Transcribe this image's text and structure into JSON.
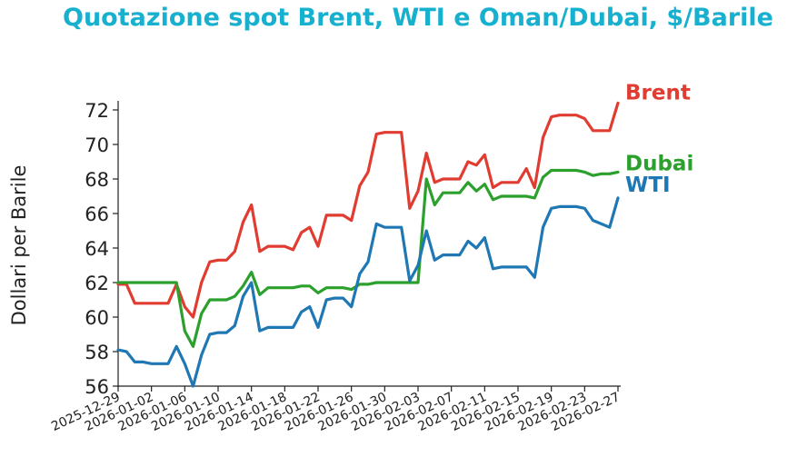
{
  "chart_data": {
    "type": "line",
    "title": "Quotazione spot Brent, WTI e Oman/Dubai, $/Barile",
    "xlabel": "",
    "ylabel": "Dollari per Barile",
    "ylim": [
      56,
      72.5
    ],
    "xlim": [
      "2025-12-29",
      "2026-02-27"
    ],
    "y_ticks": [
      "56",
      "58",
      "60",
      "62",
      "64",
      "66",
      "68",
      "70",
      "72"
    ],
    "x_ticks": [
      "2025-12-29",
      "2026-01-02",
      "2026-01-06",
      "2026-01-10",
      "2026-01-14",
      "2026-01-18",
      "2026-01-22",
      "2026-01-26",
      "2026-01-30",
      "2026-02-03",
      "2026-02-07",
      "2026-02-11",
      "2026-02-15",
      "2026-02-19",
      "2026-02-23",
      "2026-02-27"
    ],
    "grid": false,
    "legend": "labels at right end of lines",
    "series": [
      {
        "name": "Brent",
        "color": "#e03c31",
        "points": [
          [
            "2025-12-29",
            61.9
          ],
          [
            "2025-12-30",
            61.9
          ],
          [
            "2025-12-31",
            60.8
          ],
          [
            "2026-01-01",
            60.8
          ],
          [
            "2026-01-02",
            60.8
          ],
          [
            "2026-01-03",
            60.8
          ],
          [
            "2026-01-04",
            60.8
          ],
          [
            "2026-01-05",
            61.9
          ],
          [
            "2026-01-06",
            60.6
          ],
          [
            "2026-01-07",
            60.0
          ],
          [
            "2026-01-08",
            62.0
          ],
          [
            "2026-01-09",
            63.2
          ],
          [
            "2026-01-10",
            63.3
          ],
          [
            "2026-01-11",
            63.3
          ],
          [
            "2026-01-12",
            63.8
          ],
          [
            "2026-01-13",
            65.5
          ],
          [
            "2026-01-14",
            66.5
          ],
          [
            "2026-01-15",
            63.8
          ],
          [
            "2026-01-16",
            64.1
          ],
          [
            "2026-01-17",
            64.1
          ],
          [
            "2026-01-18",
            64.1
          ],
          [
            "2026-01-19",
            63.9
          ],
          [
            "2026-01-20",
            64.9
          ],
          [
            "2026-01-21",
            65.2
          ],
          [
            "2026-01-22",
            64.1
          ],
          [
            "2026-01-23",
            65.9
          ],
          [
            "2026-01-24",
            65.9
          ],
          [
            "2026-01-25",
            65.9
          ],
          [
            "2026-01-26",
            65.6
          ],
          [
            "2026-01-27",
            67.6
          ],
          [
            "2026-01-28",
            68.4
          ],
          [
            "2026-01-29",
            70.6
          ],
          [
            "2026-01-30",
            70.7
          ],
          [
            "2026-01-31",
            70.7
          ],
          [
            "2026-02-01",
            70.7
          ],
          [
            "2026-02-02",
            66.3
          ],
          [
            "2026-02-03",
            67.3
          ],
          [
            "2026-02-04",
            69.5
          ],
          [
            "2026-02-05",
            67.8
          ],
          [
            "2026-02-06",
            68.0
          ],
          [
            "2026-02-07",
            68.0
          ],
          [
            "2026-02-08",
            68.0
          ],
          [
            "2026-02-09",
            69.0
          ],
          [
            "2026-02-10",
            68.8
          ],
          [
            "2026-02-11",
            69.4
          ],
          [
            "2026-02-12",
            67.5
          ],
          [
            "2026-02-13",
            67.8
          ],
          [
            "2026-02-14",
            67.8
          ],
          [
            "2026-02-15",
            67.8
          ],
          [
            "2026-02-16",
            68.6
          ],
          [
            "2026-02-17",
            67.5
          ],
          [
            "2026-02-18",
            70.4
          ],
          [
            "2026-02-19",
            71.6
          ],
          [
            "2026-02-20",
            71.7
          ],
          [
            "2026-02-21",
            71.7
          ],
          [
            "2026-02-22",
            71.7
          ],
          [
            "2026-02-23",
            71.5
          ],
          [
            "2026-02-24",
            70.8
          ],
          [
            "2026-02-25",
            70.8
          ],
          [
            "2026-02-26",
            70.8
          ],
          [
            "2026-02-27",
            72.4
          ]
        ]
      },
      {
        "name": "Dubai",
        "color": "#2ca02c",
        "points": [
          [
            "2025-12-29",
            62.0
          ],
          [
            "2025-12-30",
            62.0
          ],
          [
            "2025-12-31",
            62.0
          ],
          [
            "2026-01-01",
            62.0
          ],
          [
            "2026-01-02",
            62.0
          ],
          [
            "2026-01-03",
            62.0
          ],
          [
            "2026-01-04",
            62.0
          ],
          [
            "2026-01-05",
            62.0
          ],
          [
            "2026-01-06",
            59.2
          ],
          [
            "2026-01-07",
            58.3
          ],
          [
            "2026-01-08",
            60.2
          ],
          [
            "2026-01-09",
            61.0
          ],
          [
            "2026-01-10",
            61.0
          ],
          [
            "2026-01-11",
            61.0
          ],
          [
            "2026-01-12",
            61.2
          ],
          [
            "2026-01-13",
            61.8
          ],
          [
            "2026-01-14",
            62.6
          ],
          [
            "2026-01-15",
            61.3
          ],
          [
            "2026-01-16",
            61.7
          ],
          [
            "2026-01-17",
            61.7
          ],
          [
            "2026-01-18",
            61.7
          ],
          [
            "2026-01-19",
            61.7
          ],
          [
            "2026-01-20",
            61.8
          ],
          [
            "2026-01-21",
            61.8
          ],
          [
            "2026-01-22",
            61.4
          ],
          [
            "2026-01-23",
            61.7
          ],
          [
            "2026-01-24",
            61.7
          ],
          [
            "2026-01-25",
            61.7
          ],
          [
            "2026-01-26",
            61.6
          ],
          [
            "2026-01-27",
            61.9
          ],
          [
            "2026-01-28",
            61.9
          ],
          [
            "2026-01-29",
            62.0
          ],
          [
            "2026-01-30",
            62.0
          ],
          [
            "2026-01-31",
            62.0
          ],
          [
            "2026-02-01",
            62.0
          ],
          [
            "2026-02-02",
            62.0
          ],
          [
            "2026-02-03",
            62.0
          ],
          [
            "2026-02-04",
            68.0
          ],
          [
            "2026-02-05",
            66.5
          ],
          [
            "2026-02-06",
            67.2
          ],
          [
            "2026-02-07",
            67.2
          ],
          [
            "2026-02-08",
            67.2
          ],
          [
            "2026-02-09",
            67.8
          ],
          [
            "2026-02-10",
            67.3
          ],
          [
            "2026-02-11",
            67.7
          ],
          [
            "2026-02-12",
            66.8
          ],
          [
            "2026-02-13",
            67.0
          ],
          [
            "2026-02-14",
            67.0
          ],
          [
            "2026-02-15",
            67.0
          ],
          [
            "2026-02-16",
            67.0
          ],
          [
            "2026-02-17",
            66.9
          ],
          [
            "2026-02-18",
            68.1
          ],
          [
            "2026-02-19",
            68.5
          ],
          [
            "2026-02-20",
            68.5
          ],
          [
            "2026-02-21",
            68.5
          ],
          [
            "2026-02-22",
            68.5
          ],
          [
            "2026-02-23",
            68.4
          ],
          [
            "2026-02-24",
            68.2
          ],
          [
            "2026-02-25",
            68.3
          ],
          [
            "2026-02-26",
            68.3
          ],
          [
            "2026-02-27",
            68.4
          ]
        ]
      },
      {
        "name": "WTI",
        "color": "#1f77b4",
        "points": [
          [
            "2025-12-29",
            58.1
          ],
          [
            "2025-12-30",
            58.0
          ],
          [
            "2025-12-31",
            57.4
          ],
          [
            "2026-01-01",
            57.4
          ],
          [
            "2026-01-02",
            57.3
          ],
          [
            "2026-01-03",
            57.3
          ],
          [
            "2026-01-04",
            57.3
          ],
          [
            "2026-01-05",
            58.3
          ],
          [
            "2026-01-06",
            57.3
          ],
          [
            "2026-01-07",
            56.0
          ],
          [
            "2026-01-08",
            57.8
          ],
          [
            "2026-01-09",
            59.0
          ],
          [
            "2026-01-10",
            59.1
          ],
          [
            "2026-01-11",
            59.1
          ],
          [
            "2026-01-12",
            59.5
          ],
          [
            "2026-01-13",
            61.2
          ],
          [
            "2026-01-14",
            62.0
          ],
          [
            "2026-01-15",
            59.2
          ],
          [
            "2026-01-16",
            59.4
          ],
          [
            "2026-01-17",
            59.4
          ],
          [
            "2026-01-18",
            59.4
          ],
          [
            "2026-01-19",
            59.4
          ],
          [
            "2026-01-20",
            60.3
          ],
          [
            "2026-01-21",
            60.6
          ],
          [
            "2026-01-22",
            59.4
          ],
          [
            "2026-01-23",
            61.0
          ],
          [
            "2026-01-24",
            61.1
          ],
          [
            "2026-01-25",
            61.1
          ],
          [
            "2026-01-26",
            60.6
          ],
          [
            "2026-01-27",
            62.5
          ],
          [
            "2026-01-28",
            63.2
          ],
          [
            "2026-01-29",
            65.4
          ],
          [
            "2026-01-30",
            65.2
          ],
          [
            "2026-01-31",
            65.2
          ],
          [
            "2026-02-01",
            65.2
          ],
          [
            "2026-02-02",
            62.1
          ],
          [
            "2026-02-03",
            63.0
          ],
          [
            "2026-02-04",
            65.0
          ],
          [
            "2026-02-05",
            63.3
          ],
          [
            "2026-02-06",
            63.6
          ],
          [
            "2026-02-07",
            63.6
          ],
          [
            "2026-02-08",
            63.6
          ],
          [
            "2026-02-09",
            64.4
          ],
          [
            "2026-02-10",
            64.0
          ],
          [
            "2026-02-11",
            64.6
          ],
          [
            "2026-02-12",
            62.8
          ],
          [
            "2026-02-13",
            62.9
          ],
          [
            "2026-02-14",
            62.9
          ],
          [
            "2026-02-15",
            62.9
          ],
          [
            "2026-02-16",
            62.9
          ],
          [
            "2026-02-17",
            62.3
          ],
          [
            "2026-02-18",
            65.2
          ],
          [
            "2026-02-19",
            66.3
          ],
          [
            "2026-02-20",
            66.4
          ],
          [
            "2026-02-21",
            66.4
          ],
          [
            "2026-02-22",
            66.4
          ],
          [
            "2026-02-23",
            66.3
          ],
          [
            "2026-02-24",
            65.6
          ],
          [
            "2026-02-25",
            65.4
          ],
          [
            "2026-02-26",
            65.2
          ],
          [
            "2026-02-27",
            66.9
          ]
        ]
      }
    ]
  }
}
